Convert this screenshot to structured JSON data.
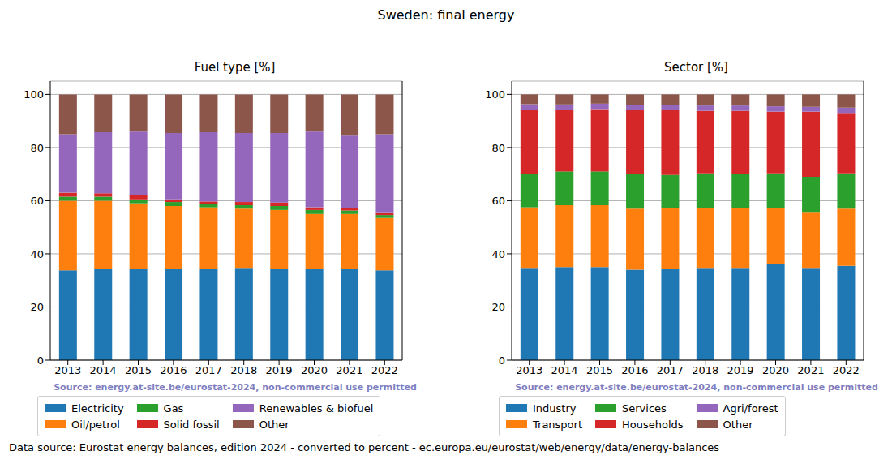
{
  "title": "Sweden: final energy",
  "footer": "Data source: Eurostat energy balances, edition 2024 - converted to percent - ec.europa.eu/eurostat/web/energy/data/energy-balances",
  "chart_data": [
    {
      "type": "bar",
      "title": "Fuel type [%]",
      "source": "Source: energy.at-site.be/eurostat-2024, non-commercial use permitted",
      "stacked": true,
      "grid": true,
      "legend": "bottom",
      "categories": [
        "2013",
        "2014",
        "2015",
        "2016",
        "2017",
        "2018",
        "2019",
        "2020",
        "2021",
        "2022"
      ],
      "ylim": [
        0,
        105
      ],
      "yticks": [
        0,
        20,
        40,
        60,
        80,
        100
      ],
      "series": [
        {
          "name": "Electricity",
          "color": "#1f77b4",
          "values": [
            33.8,
            34.2,
            34.2,
            34.2,
            34.5,
            34.7,
            34.2,
            34.2,
            34.2,
            33.8
          ]
        },
        {
          "name": "Oil/petrol",
          "color": "#ff7f0e",
          "values": [
            26.2,
            25.8,
            24.8,
            23.8,
            23.0,
            22.3,
            22.3,
            20.8,
            20.8,
            19.7
          ]
        },
        {
          "name": "Gas",
          "color": "#2ca02c",
          "values": [
            1.5,
            1.5,
            1.5,
            1.5,
            1.2,
            1.3,
            1.5,
            1.5,
            1.3,
            1.1
          ]
        },
        {
          "name": "Solid fossil",
          "color": "#d62728",
          "values": [
            1.5,
            1.3,
            1.5,
            1.0,
            1.0,
            1.2,
            1.3,
            1.0,
            0.9,
            1.0
          ]
        },
        {
          "name": "Renewables & biofuel",
          "color": "#9467bd",
          "values": [
            22.0,
            23.0,
            24.0,
            25.0,
            26.1,
            26.0,
            26.2,
            28.5,
            27.3,
            29.4
          ]
        },
        {
          "name": "Other",
          "color": "#8c564b",
          "values": [
            15.0,
            14.2,
            14.0,
            14.5,
            14.2,
            14.5,
            14.5,
            14.0,
            15.5,
            15.0
          ]
        }
      ]
    },
    {
      "type": "bar",
      "title": "Sector [%]",
      "source": "Source: energy.at-site.be/eurostat-2024, non-commercial use permitted",
      "stacked": true,
      "grid": true,
      "legend": "bottom",
      "categories": [
        "2013",
        "2014",
        "2015",
        "2016",
        "2017",
        "2018",
        "2019",
        "2020",
        "2021",
        "2022"
      ],
      "ylim": [
        0,
        105
      ],
      "yticks": [
        0,
        20,
        40,
        60,
        80,
        100
      ],
      "series": [
        {
          "name": "Industry",
          "color": "#1f77b4",
          "values": [
            34.7,
            35.0,
            35.0,
            34.0,
            34.5,
            34.7,
            34.7,
            36.0,
            34.7,
            35.5
          ]
        },
        {
          "name": "Transport",
          "color": "#ff7f0e",
          "values": [
            22.8,
            23.3,
            23.3,
            23.0,
            22.7,
            22.5,
            22.5,
            21.3,
            21.1,
            21.5
          ]
        },
        {
          "name": "Services",
          "color": "#2ca02c",
          "values": [
            12.5,
            12.7,
            12.7,
            13.0,
            12.5,
            13.1,
            12.8,
            13.0,
            13.2,
            13.3
          ]
        },
        {
          "name": "Households",
          "color": "#d62728",
          "values": [
            24.3,
            23.3,
            23.5,
            24.0,
            24.3,
            23.5,
            23.8,
            23.2,
            24.5,
            22.7
          ]
        },
        {
          "name": "Agri/forest",
          "color": "#9467bd",
          "values": [
            2.0,
            1.9,
            2.0,
            2.0,
            2.0,
            2.0,
            2.0,
            2.0,
            1.8,
            2.0
          ]
        },
        {
          "name": "Other",
          "color": "#8c564b",
          "values": [
            3.7,
            3.8,
            3.5,
            4.0,
            4.0,
            4.2,
            4.2,
            4.5,
            4.7,
            5.0
          ]
        }
      ]
    }
  ]
}
